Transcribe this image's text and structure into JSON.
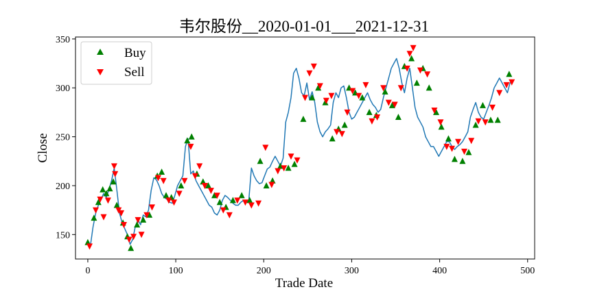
{
  "chart_data": {
    "type": "line",
    "title": "韦尔股份__2020-01-01___2021-12-31",
    "xlabel": "Trade Date",
    "ylabel": "Close",
    "xlim": [
      -14,
      508
    ],
    "ylim": [
      125,
      352
    ],
    "xticks": [
      0,
      100,
      200,
      300,
      400,
      500
    ],
    "yticks": [
      150,
      200,
      250,
      300,
      350
    ],
    "grid": false,
    "legend_position": "top-left",
    "colors": {
      "line": "#1f77b4",
      "buy": "#008000",
      "sell": "#ff0000",
      "frame": "#000000"
    },
    "close_series": {
      "name": "Close",
      "x": [
        0,
        3,
        6,
        9,
        12,
        15,
        18,
        21,
        24,
        27,
        30,
        33,
        36,
        39,
        42,
        45,
        48,
        51,
        54,
        57,
        60,
        63,
        66,
        69,
        72,
        75,
        78,
        81,
        84,
        87,
        90,
        93,
        96,
        99,
        102,
        105,
        108,
        111,
        114,
        117,
        120,
        123,
        126,
        129,
        132,
        135,
        138,
        141,
        144,
        147,
        150,
        153,
        156,
        159,
        162,
        165,
        168,
        171,
        174,
        177,
        180,
        183,
        186,
        189,
        192,
        195,
        198,
        201,
        204,
        207,
        210,
        213,
        216,
        219,
        222,
        225,
        228,
        231,
        234,
        237,
        240,
        243,
        246,
        249,
        252,
        255,
        258,
        261,
        264,
        267,
        270,
        273,
        276,
        279,
        282,
        285,
        288,
        291,
        294,
        297,
        300,
        303,
        306,
        309,
        312,
        315,
        318,
        321,
        324,
        327,
        330,
        333,
        336,
        339,
        342,
        345,
        348,
        351,
        354,
        357,
        360,
        363,
        366,
        369,
        372,
        375,
        378,
        381,
        384,
        387,
        390,
        393,
        396,
        399,
        402,
        405,
        408,
        411,
        414,
        417,
        420,
        423,
        426,
        429,
        432,
        435,
        438,
        441,
        444,
        447,
        450,
        453,
        456,
        459,
        462,
        465,
        468,
        471,
        474,
        477,
        480,
        483
      ],
      "y": [
        143,
        139,
        158,
        172,
        180,
        186,
        192,
        188,
        196,
        205,
        218,
        196,
        172,
        162,
        156,
        150,
        140,
        145,
        158,
        165,
        160,
        170,
        168,
        175,
        195,
        208,
        206,
        200,
        192,
        188,
        186,
        183,
        182,
        190,
        200,
        205,
        210,
        240,
        248,
        212,
        215,
        205,
        200,
        195,
        190,
        185,
        180,
        178,
        172,
        170,
        175,
        185,
        190,
        188,
        185,
        182,
        180,
        180,
        183,
        185,
        183,
        185,
        218,
        210,
        205,
        202,
        203,
        210,
        217,
        219,
        225,
        230,
        225,
        220,
        228,
        265,
        275,
        290,
        315,
        320,
        310,
        295,
        292,
        305,
        288,
        296,
        285,
        265,
        255,
        250,
        255,
        258,
        262,
        285,
        295,
        290,
        300,
        302,
        290,
        275,
        268,
        270,
        275,
        280,
        285,
        290,
        295,
        288,
        283,
        280,
        275,
        278,
        290,
        300,
        310,
        320,
        325,
        330,
        320,
        305,
        295,
        310,
        320,
        300,
        280,
        270,
        265,
        260,
        250,
        245,
        240,
        240,
        235,
        230,
        235,
        240,
        245,
        245,
        240,
        237,
        240,
        242,
        245,
        250,
        255,
        270,
        278,
        285,
        275,
        270,
        268,
        275,
        282,
        290,
        300,
        305,
        310,
        305,
        300,
        295,
        305,
        308
      ]
    },
    "buy_signals": {
      "name": "Buy",
      "x": [
        0,
        7,
        12,
        17,
        21,
        25,
        29,
        33,
        40,
        45,
        49,
        56,
        63,
        70,
        79,
        84,
        89,
        95,
        106,
        113,
        118,
        124,
        131,
        137,
        144,
        150,
        157,
        165,
        175,
        184,
        196,
        203,
        210,
        219,
        228,
        235,
        245,
        255,
        262,
        270,
        278,
        285,
        292,
        297,
        304,
        312,
        320,
        328,
        338,
        346,
        353,
        360,
        368,
        374,
        381,
        388,
        396,
        402,
        410,
        417,
        426,
        433,
        441,
        449,
        458,
        466,
        479
      ],
      "y": [
        142,
        167,
        183,
        196,
        192,
        197,
        204,
        180,
        162,
        148,
        136,
        160,
        165,
        170,
        210,
        214,
        190,
        188,
        200,
        246,
        250,
        212,
        204,
        200,
        190,
        183,
        178,
        185,
        190,
        185,
        225,
        200,
        205,
        220,
        218,
        222,
        268,
        290,
        300,
        285,
        248,
        258,
        262,
        300,
        295,
        290,
        275,
        272,
        296,
        282,
        270,
        322,
        330,
        305,
        320,
        300,
        275,
        260,
        248,
        227,
        225,
        234,
        262,
        282,
        267,
        267,
        314
      ]
    },
    "sell_signals": {
      "name": "Sell",
      "x": [
        2,
        9,
        14,
        18,
        23,
        30,
        31,
        35,
        38,
        41,
        47,
        52,
        57,
        61,
        67,
        73,
        80,
        86,
        92,
        98,
        104,
        110,
        117,
        122,
        127,
        133,
        140,
        147,
        154,
        161,
        170,
        179,
        186,
        194,
        202,
        209,
        216,
        223,
        231,
        238,
        247,
        252,
        257,
        264,
        271,
        277,
        283,
        289,
        295,
        301,
        308,
        316,
        323,
        329,
        336,
        342,
        349,
        356,
        363,
        366,
        370,
        378,
        386,
        394,
        401,
        408,
        414,
        421,
        428,
        436,
        444,
        452,
        460,
        468,
        476,
        482
      ],
      "y": [
        138,
        175,
        186,
        168,
        185,
        220,
        212,
        175,
        172,
        160,
        145,
        148,
        165,
        150,
        170,
        178,
        208,
        205,
        185,
        183,
        192,
        205,
        240,
        210,
        220,
        200,
        195,
        190,
        175,
        170,
        185,
        183,
        180,
        182,
        239,
        201,
        215,
        218,
        230,
        226,
        290,
        315,
        322,
        302,
        287,
        292,
        255,
        253,
        275,
        297,
        292,
        303,
        266,
        270,
        300,
        285,
        283,
        300,
        320,
        335,
        341,
        318,
        314,
        277,
        265,
        240,
        238,
        245,
        235,
        246,
        266,
        265,
        280,
        295,
        303,
        306
      ]
    }
  }
}
